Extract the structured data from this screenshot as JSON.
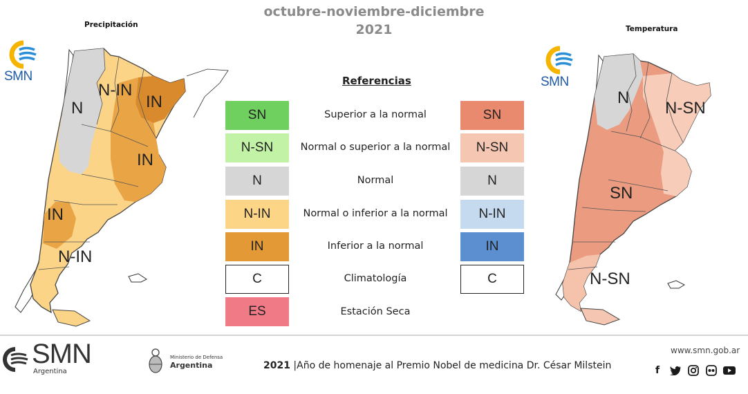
{
  "header": {
    "title_line1": "octubre-noviembre-diciembre",
    "title_line2": "2021"
  },
  "maps": {
    "precipitation": {
      "title": "Precipitación",
      "logo_text": "SMN",
      "labels": [
        "N-IN",
        "N",
        "IN",
        "IN",
        "IN",
        "N-IN"
      ]
    },
    "temperature": {
      "title": "Temperatura",
      "logo_text": "SMN",
      "labels": [
        "N",
        "N-SN",
        "SN",
        "N-SN"
      ]
    }
  },
  "legend": {
    "title": "Referencias",
    "rows": [
      {
        "left": "SN",
        "desc": "Superior a la normal",
        "right": "SN",
        "left_color": "#6fcf5f",
        "right_color": "#e98a6e"
      },
      {
        "left": "N-SN",
        "desc": "Normal o superior a la normal",
        "right": "N-SN",
        "left_color": "#c2f2a6",
        "right_color": "#f5c7b2"
      },
      {
        "left": "N",
        "desc": "Normal",
        "right": "N",
        "left_color": "#d6d6d6",
        "right_color": "#d6d6d6"
      },
      {
        "left": "N-IN",
        "desc": "Normal o inferior a la normal",
        "right": "N-IN",
        "left_color": "#fcd587",
        "right_color": "#c5d9ef"
      },
      {
        "left": "IN",
        "desc": "Inferior a la normal",
        "right": "IN",
        "left_color": "#e39a36",
        "right_color": "#5b8fd0"
      },
      {
        "left": "C",
        "desc": "Climatología",
        "right": "C",
        "left_color": "#ffffff",
        "right_color": "#ffffff"
      },
      {
        "left": "ES",
        "desc": "Estación Seca",
        "right": "",
        "left_color": "#f07a86",
        "right_color": ""
      }
    ]
  },
  "footer": {
    "logo_text": "SMN",
    "logo_sub": "Argentina",
    "ministry_line1": "Ministerio de Defensa",
    "ministry_line2": "Argentina",
    "year": "2021",
    "separator": "|",
    "tagline": "Año de homenaje al Premio Nobel de medicina Dr. César Milstein",
    "website": "www.smn.gob.ar",
    "social_icons": [
      "facebook-icon",
      "twitter-icon",
      "instagram-icon",
      "flickr-icon",
      "youtube-icon"
    ]
  }
}
